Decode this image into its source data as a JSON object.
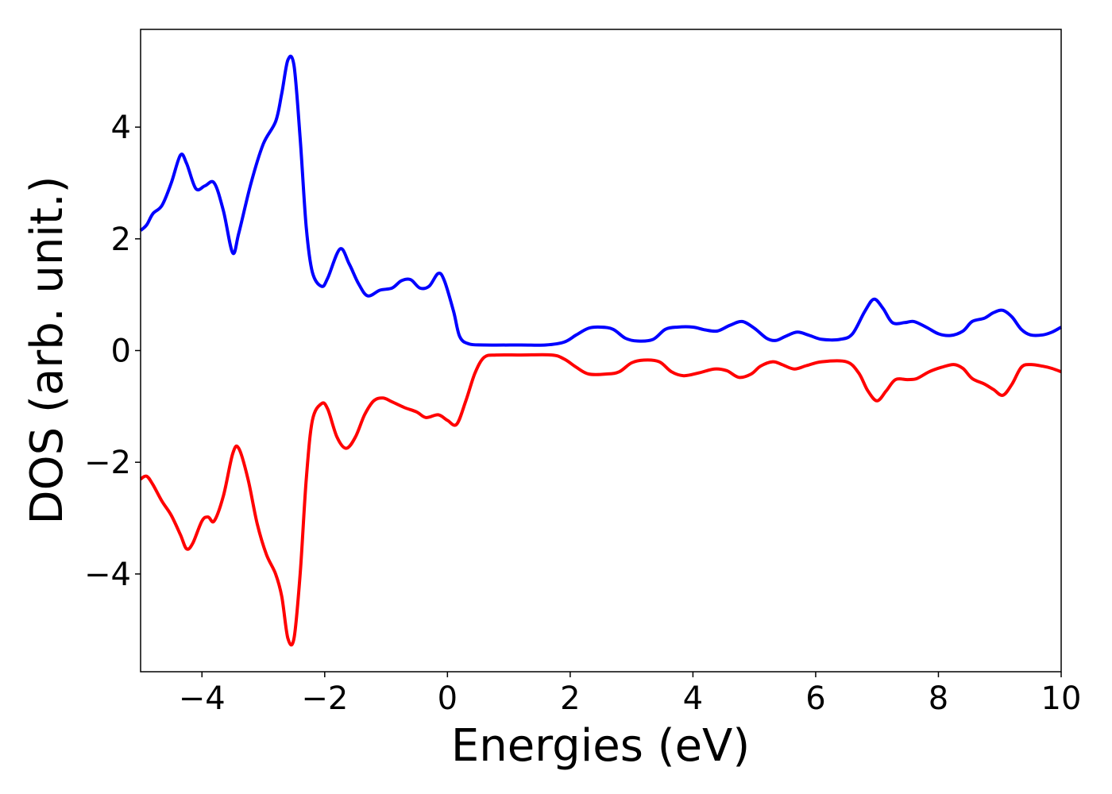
{
  "chart_data": {
    "type": "line",
    "title": "",
    "xlabel": "Energies (eV)",
    "ylabel": "DOS (arb. unit.)",
    "xlim": [
      -5,
      10
    ],
    "ylim": [
      -5.75,
      5.75
    ],
    "xticks": [
      -4,
      -2,
      0,
      2,
      4,
      6,
      8,
      10
    ],
    "yticks": [
      -4,
      -2,
      0,
      2,
      4
    ],
    "xtick_labels": [
      "−4",
      "−2",
      "0",
      "2",
      "4",
      "6",
      "8",
      "10"
    ],
    "ytick_labels": [
      "−4",
      "−2",
      "0",
      "2",
      "4"
    ],
    "grid": false,
    "legend": "none",
    "series": [
      {
        "color": "#0000ff",
        "points": [
          [
            -5.0,
            2.15
          ],
          [
            -4.9,
            2.25
          ],
          [
            -4.8,
            2.45
          ],
          [
            -4.65,
            2.6
          ],
          [
            -4.5,
            3.0
          ],
          [
            -4.35,
            3.5
          ],
          [
            -4.25,
            3.35
          ],
          [
            -4.1,
            2.9
          ],
          [
            -3.95,
            2.95
          ],
          [
            -3.8,
            3.0
          ],
          [
            -3.65,
            2.5
          ],
          [
            -3.5,
            1.75
          ],
          [
            -3.4,
            2.1
          ],
          [
            -3.2,
            3.0
          ],
          [
            -3.0,
            3.7
          ],
          [
            -2.8,
            4.1
          ],
          [
            -2.7,
            4.6
          ],
          [
            -2.6,
            5.2
          ],
          [
            -2.5,
            5.1
          ],
          [
            -2.4,
            3.8
          ],
          [
            -2.3,
            2.2
          ],
          [
            -2.2,
            1.4
          ],
          [
            -2.05,
            1.15
          ],
          [
            -1.95,
            1.3
          ],
          [
            -1.75,
            1.82
          ],
          [
            -1.6,
            1.55
          ],
          [
            -1.45,
            1.2
          ],
          [
            -1.3,
            0.98
          ],
          [
            -1.1,
            1.08
          ],
          [
            -0.9,
            1.12
          ],
          [
            -0.75,
            1.25
          ],
          [
            -0.6,
            1.27
          ],
          [
            -0.45,
            1.12
          ],
          [
            -0.3,
            1.15
          ],
          [
            -0.15,
            1.38
          ],
          [
            -0.05,
            1.25
          ],
          [
            0.1,
            0.7
          ],
          [
            0.2,
            0.25
          ],
          [
            0.35,
            0.12
          ],
          [
            0.6,
            0.1
          ],
          [
            1.2,
            0.1
          ],
          [
            1.6,
            0.1
          ],
          [
            1.9,
            0.15
          ],
          [
            2.1,
            0.28
          ],
          [
            2.3,
            0.4
          ],
          [
            2.5,
            0.42
          ],
          [
            2.7,
            0.38
          ],
          [
            2.9,
            0.22
          ],
          [
            3.1,
            0.17
          ],
          [
            3.35,
            0.2
          ],
          [
            3.55,
            0.38
          ],
          [
            3.75,
            0.42
          ],
          [
            4.0,
            0.42
          ],
          [
            4.2,
            0.37
          ],
          [
            4.4,
            0.35
          ],
          [
            4.6,
            0.45
          ],
          [
            4.8,
            0.52
          ],
          [
            5.0,
            0.4
          ],
          [
            5.2,
            0.22
          ],
          [
            5.35,
            0.18
          ],
          [
            5.5,
            0.25
          ],
          [
            5.7,
            0.33
          ],
          [
            5.9,
            0.27
          ],
          [
            6.1,
            0.2
          ],
          [
            6.4,
            0.2
          ],
          [
            6.6,
            0.3
          ],
          [
            6.8,
            0.7
          ],
          [
            6.95,
            0.92
          ],
          [
            7.1,
            0.75
          ],
          [
            7.25,
            0.5
          ],
          [
            7.45,
            0.5
          ],
          [
            7.6,
            0.52
          ],
          [
            7.8,
            0.42
          ],
          [
            8.0,
            0.3
          ],
          [
            8.2,
            0.27
          ],
          [
            8.4,
            0.35
          ],
          [
            8.55,
            0.52
          ],
          [
            8.75,
            0.58
          ],
          [
            8.9,
            0.68
          ],
          [
            9.05,
            0.72
          ],
          [
            9.2,
            0.6
          ],
          [
            9.35,
            0.38
          ],
          [
            9.5,
            0.28
          ],
          [
            9.7,
            0.28
          ],
          [
            9.85,
            0.33
          ],
          [
            10.0,
            0.42
          ]
        ]
      },
      {
        "color": "#ff0000",
        "points": [
          [
            -5.0,
            -2.3
          ],
          [
            -4.9,
            -2.25
          ],
          [
            -4.8,
            -2.4
          ],
          [
            -4.65,
            -2.7
          ],
          [
            -4.5,
            -2.95
          ],
          [
            -4.35,
            -3.3
          ],
          [
            -4.25,
            -3.55
          ],
          [
            -4.15,
            -3.45
          ],
          [
            -4.0,
            -3.05
          ],
          [
            -3.9,
            -2.98
          ],
          [
            -3.8,
            -3.05
          ],
          [
            -3.65,
            -2.6
          ],
          [
            -3.5,
            -1.85
          ],
          [
            -3.4,
            -1.75
          ],
          [
            -3.25,
            -2.3
          ],
          [
            -3.1,
            -3.1
          ],
          [
            -2.95,
            -3.65
          ],
          [
            -2.8,
            -4.0
          ],
          [
            -2.7,
            -4.4
          ],
          [
            -2.6,
            -5.15
          ],
          [
            -2.5,
            -5.15
          ],
          [
            -2.4,
            -4.0
          ],
          [
            -2.3,
            -2.3
          ],
          [
            -2.2,
            -1.25
          ],
          [
            -2.05,
            -0.95
          ],
          [
            -1.95,
            -1.05
          ],
          [
            -1.8,
            -1.55
          ],
          [
            -1.65,
            -1.75
          ],
          [
            -1.5,
            -1.55
          ],
          [
            -1.35,
            -1.15
          ],
          [
            -1.2,
            -0.9
          ],
          [
            -1.05,
            -0.85
          ],
          [
            -0.9,
            -0.92
          ],
          [
            -0.7,
            -1.02
          ],
          [
            -0.5,
            -1.1
          ],
          [
            -0.35,
            -1.2
          ],
          [
            -0.15,
            -1.15
          ],
          [
            0.0,
            -1.25
          ],
          [
            0.15,
            -1.32
          ],
          [
            0.3,
            -0.9
          ],
          [
            0.45,
            -0.4
          ],
          [
            0.6,
            -0.12
          ],
          [
            0.8,
            -0.08
          ],
          [
            1.2,
            -0.08
          ],
          [
            1.7,
            -0.08
          ],
          [
            1.9,
            -0.15
          ],
          [
            2.1,
            -0.3
          ],
          [
            2.3,
            -0.42
          ],
          [
            2.6,
            -0.42
          ],
          [
            2.8,
            -0.38
          ],
          [
            3.0,
            -0.22
          ],
          [
            3.2,
            -0.17
          ],
          [
            3.45,
            -0.2
          ],
          [
            3.65,
            -0.38
          ],
          [
            3.85,
            -0.45
          ],
          [
            4.1,
            -0.4
          ],
          [
            4.35,
            -0.33
          ],
          [
            4.55,
            -0.36
          ],
          [
            4.75,
            -0.48
          ],
          [
            4.95,
            -0.42
          ],
          [
            5.1,
            -0.28
          ],
          [
            5.3,
            -0.2
          ],
          [
            5.45,
            -0.25
          ],
          [
            5.65,
            -0.33
          ],
          [
            5.85,
            -0.27
          ],
          [
            6.1,
            -0.2
          ],
          [
            6.5,
            -0.2
          ],
          [
            6.7,
            -0.4
          ],
          [
            6.85,
            -0.72
          ],
          [
            7.0,
            -0.9
          ],
          [
            7.15,
            -0.72
          ],
          [
            7.3,
            -0.52
          ],
          [
            7.5,
            -0.52
          ],
          [
            7.65,
            -0.5
          ],
          [
            7.85,
            -0.38
          ],
          [
            8.05,
            -0.3
          ],
          [
            8.25,
            -0.25
          ],
          [
            8.4,
            -0.32
          ],
          [
            8.55,
            -0.5
          ],
          [
            8.75,
            -0.6
          ],
          [
            8.9,
            -0.7
          ],
          [
            9.05,
            -0.8
          ],
          [
            9.2,
            -0.6
          ],
          [
            9.35,
            -0.3
          ],
          [
            9.5,
            -0.25
          ],
          [
            9.7,
            -0.28
          ],
          [
            9.85,
            -0.32
          ],
          [
            10.0,
            -0.38
          ]
        ]
      }
    ]
  }
}
